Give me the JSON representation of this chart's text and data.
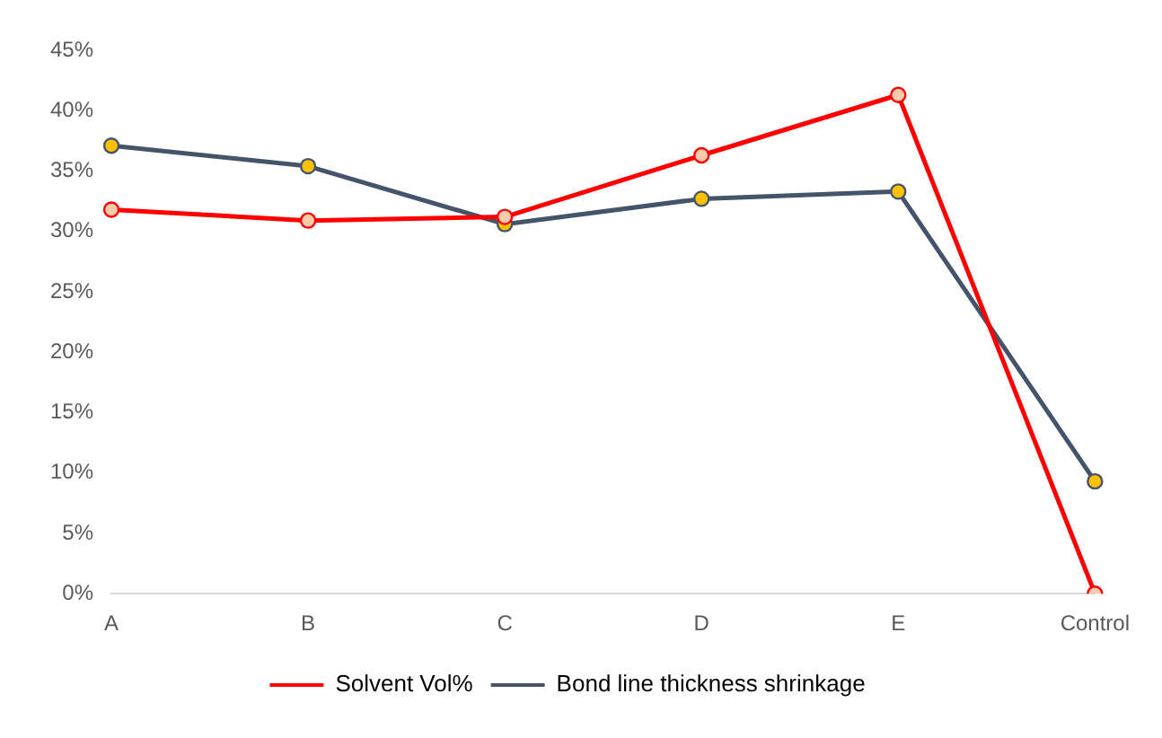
{
  "chart_data": {
    "type": "line",
    "categories": [
      "A",
      "B",
      "C",
      "D",
      "E",
      "Control"
    ],
    "series": [
      {
        "name": "Solvent Vol%",
        "color": "#ff0000",
        "values": [
          31.8,
          30.9,
          31.2,
          36.3,
          41.3,
          0
        ]
      },
      {
        "name": "Bond line thickness shrinkage",
        "color": "#44546a",
        "values": [
          37.1,
          35.4,
          30.6,
          32.7,
          33.3,
          9.3
        ]
      }
    ],
    "ylim": [
      0,
      45
    ],
    "yticks": [
      {
        "value": 0,
        "label": "0%"
      },
      {
        "value": 5,
        "label": "5%"
      },
      {
        "value": 10,
        "label": "10%"
      },
      {
        "value": 15,
        "label": "15%"
      },
      {
        "value": 20,
        "label": "20%"
      },
      {
        "value": 25,
        "label": "25%"
      },
      {
        "value": 30,
        "label": "30%"
      },
      {
        "value": 35,
        "label": "35%"
      },
      {
        "value": 40,
        "label": "40%"
      },
      {
        "value": 45,
        "label": "45%"
      }
    ],
    "legend": "bottom",
    "marker": "circle",
    "line_style": "solid"
  }
}
